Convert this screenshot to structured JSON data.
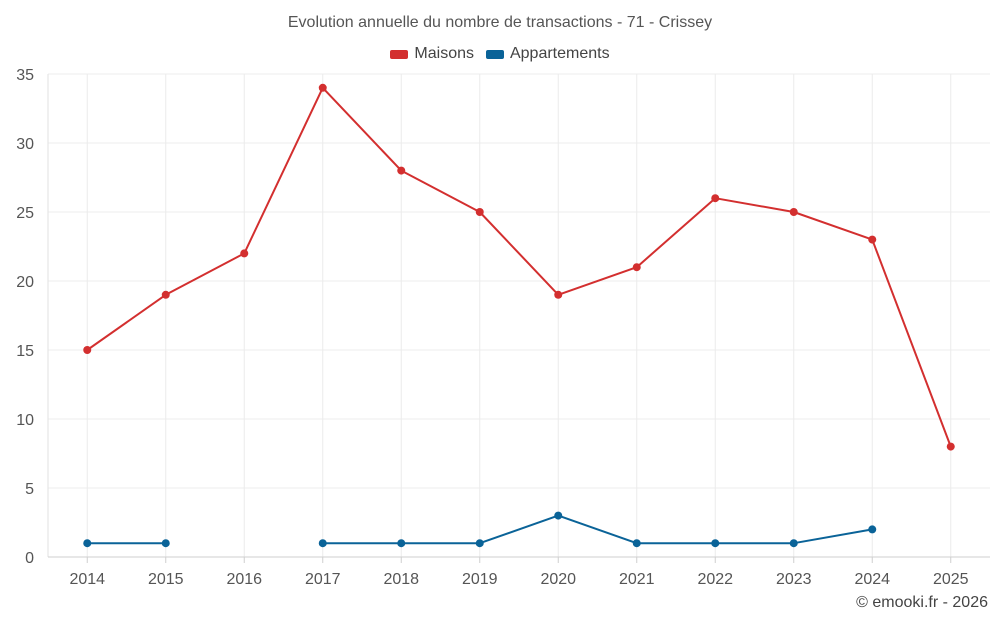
{
  "chart_data": {
    "type": "line",
    "title": "Evolution annuelle du nombre de transactions - 71 - Crissey",
    "categories": [
      "2014",
      "2015",
      "2016",
      "2017",
      "2018",
      "2019",
      "2020",
      "2021",
      "2022",
      "2023",
      "2024",
      "2025"
    ],
    "series": [
      {
        "name": "Maisons",
        "color": "#d32f2f",
        "values": [
          15,
          19,
          22,
          34,
          28,
          25,
          19,
          21,
          26,
          25,
          23,
          8
        ]
      },
      {
        "name": "Appartements",
        "color": "#0a6398",
        "values": [
          1,
          1,
          null,
          1,
          1,
          1,
          3,
          1,
          1,
          1,
          2,
          null
        ]
      }
    ],
    "ylim": [
      0,
      35
    ],
    "yticks": [
      0,
      5,
      10,
      15,
      20,
      25,
      30,
      35
    ],
    "xlabel": "",
    "ylabel": "",
    "grid": true,
    "legend_position": "top-center"
  },
  "footer": {
    "credit": "© emooki.fr - 2026"
  }
}
